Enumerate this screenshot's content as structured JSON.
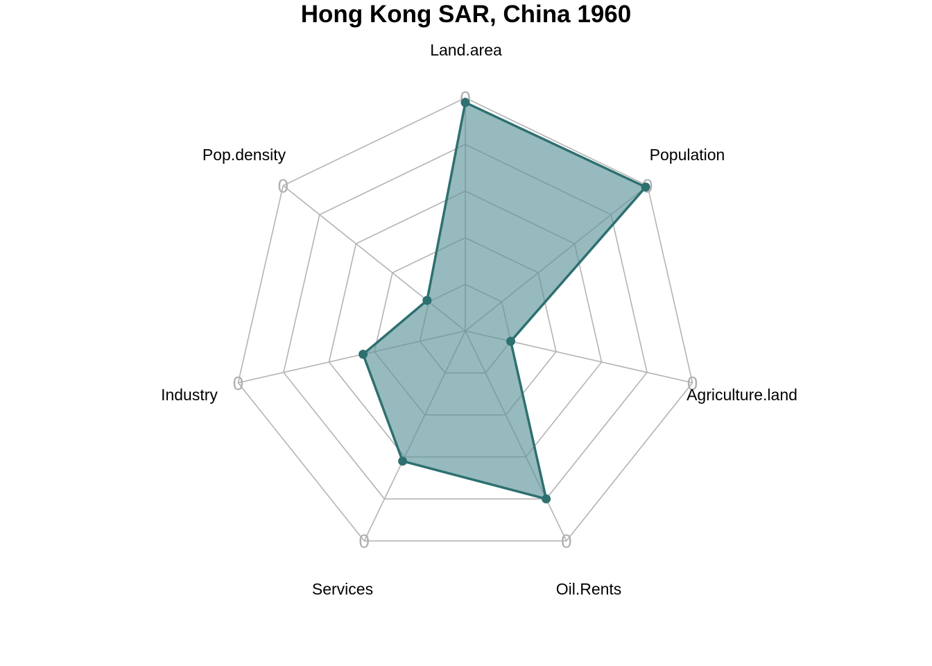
{
  "chart_data": {
    "type": "radar",
    "title": "Hong Kong SAR, China 1960",
    "axes": [
      "Land.area",
      "Population",
      "Agriculture.land",
      "Oil.Rents",
      "Services",
      "Industry",
      "Pop.density"
    ],
    "ring_labels": [
      "0",
      "0",
      "0",
      "0",
      "0",
      "0",
      "0"
    ],
    "series": [
      {
        "values": [
          0.98,
          0.99,
          0.2,
          0.8,
          0.62,
          0.45,
          0.21
        ]
      }
    ],
    "range": [
      0,
      1
    ],
    "rings": 5,
    "grid": true,
    "colors": {
      "line": "#2e7070",
      "fill": "#5a9397",
      "grid": "#b3b3b3",
      "ring_label": "#b0b0b0"
    }
  }
}
